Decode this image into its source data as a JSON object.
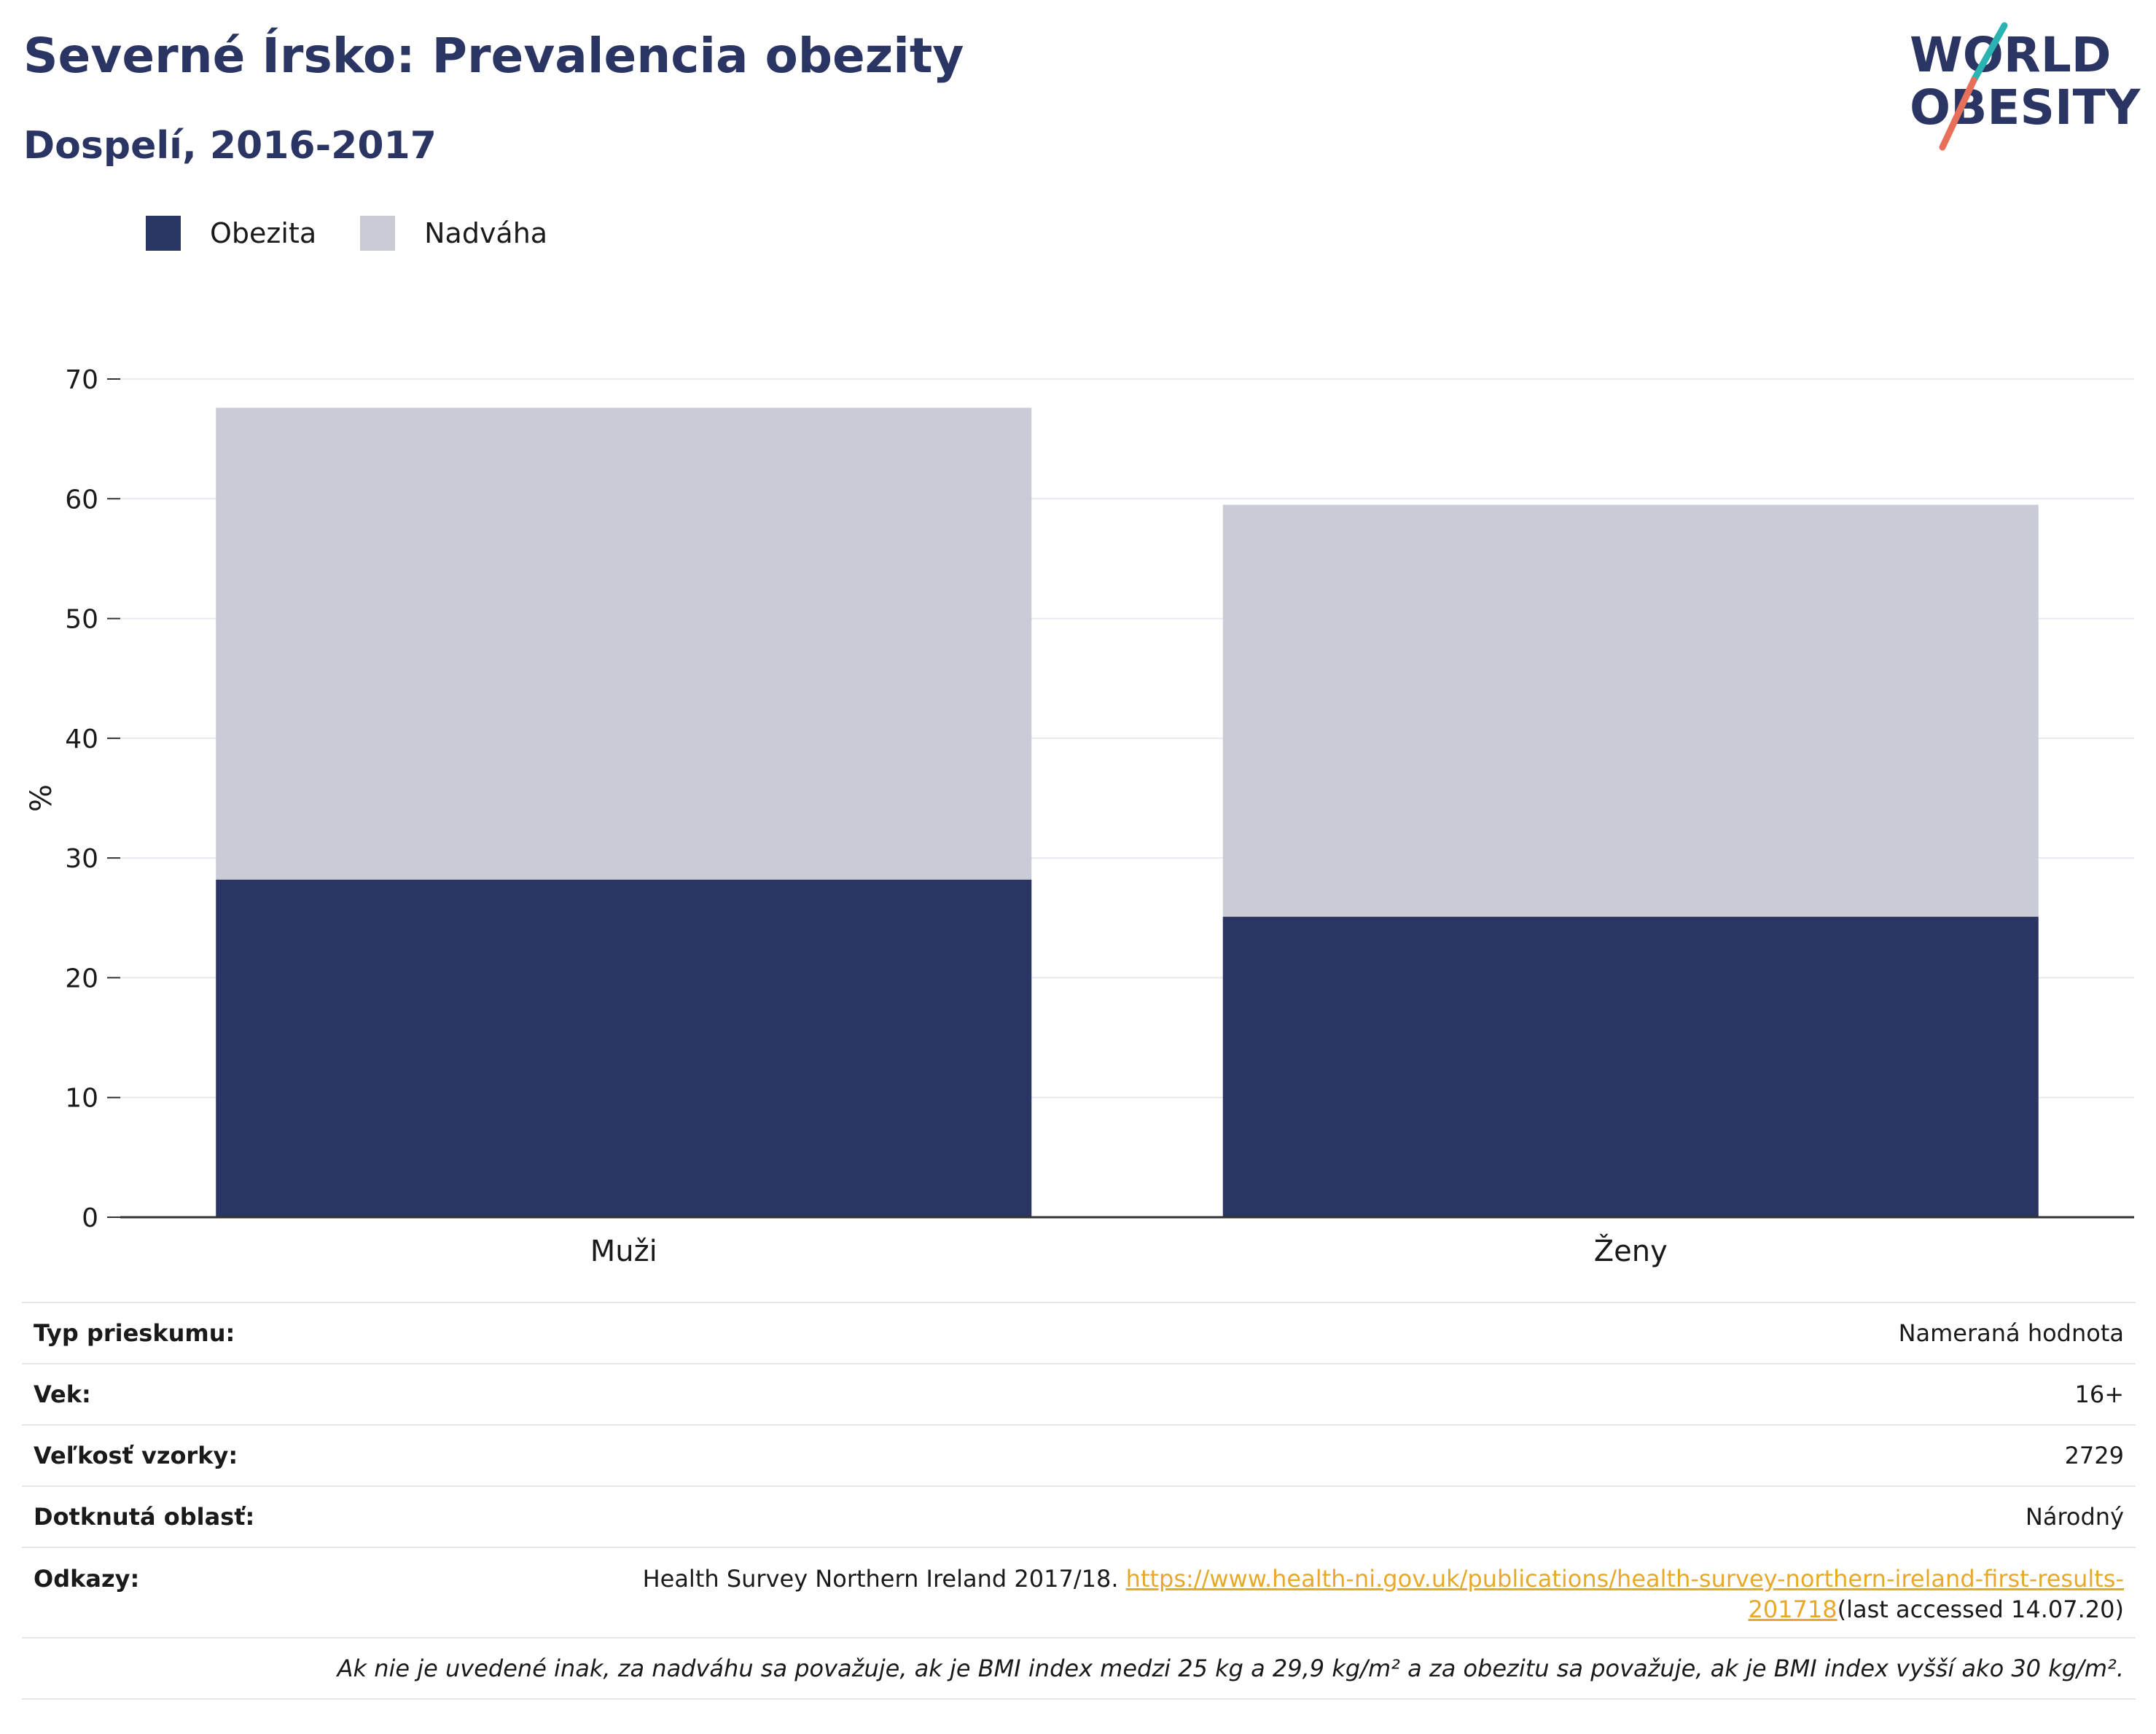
{
  "header": {
    "title": "Severné Írsko: Prevalencia obezity",
    "subtitle": "Dospelí, 2016-2017"
  },
  "logo": {
    "line1": "WORLD",
    "line2": "OBESITY",
    "colors": {
      "text": "#2a3563",
      "slash_top": "#2bb3b1",
      "slash_bottom": "#e8705a"
    }
  },
  "legend": [
    {
      "label": "Obezita",
      "color": "#2a3563"
    },
    {
      "label": "Nadváha",
      "color": "#c9ccd7"
    }
  ],
  "chart_data": {
    "type": "bar",
    "stacked": true,
    "categories": [
      "Muži",
      "Ženy"
    ],
    "series": [
      {
        "name": "Obezita",
        "color": "#2a3563",
        "values": [
          28.2,
          25.1
        ]
      },
      {
        "name": "Nadváha",
        "color": "#c9ccd7",
        "values": [
          39.4,
          34.4
        ]
      }
    ],
    "ylabel": "%",
    "ylim": [
      0,
      70
    ],
    "yticks": [
      0,
      10,
      20,
      30,
      40,
      50,
      60,
      70
    ],
    "grid": true,
    "legend_position": "top-left"
  },
  "info": {
    "survey_type": {
      "label": "Typ prieskumu:",
      "value": "Nameraná hodnota"
    },
    "age": {
      "label": "Vek:",
      "value": "16+"
    },
    "sample": {
      "label": "Veľkosť vzorky:",
      "value": "2729"
    },
    "area": {
      "label": "Dotknutá oblasť:",
      "value": "Národný"
    },
    "refs": {
      "label": "Odkazy:",
      "text": "Health Survey Northern Ireland 2017/18.",
      "link_part1": "https://www.health-ni.gov.uk/publications/health-survey-northern-ireland-first-results-",
      "link_part2": "201718",
      "after": "(last accessed 14.07.20)"
    },
    "note": "Ak nie je uvedené inak, za nadváhu sa považuje, ak je BMI index medzi 25 kg a 29,9 kg/m² a za obezitu sa považuje, ak je BMI index vyšší ako 30 kg/m²."
  }
}
